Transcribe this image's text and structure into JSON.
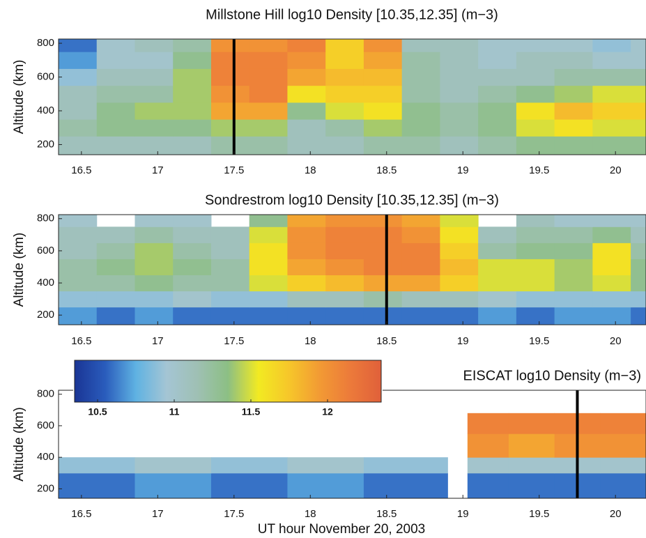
{
  "chart_data": [
    {
      "type": "heatmap",
      "title": "Millstone Hill log10 Density [10.35,12.35] (m−3)",
      "ylabel": "Altitude (km)",
      "xlim": [
        16.35,
        20.2
      ],
      "xticks": [
        16.5,
        17,
        17.5,
        18,
        18.5,
        19,
        19.5,
        20
      ],
      "ylim": [
        140,
        825
      ],
      "yticks": [
        200,
        400,
        600,
        800
      ],
      "clim": [
        10.35,
        12.35
      ],
      "colormap": [
        "#1a3595",
        "#2a5cbc",
        "#5fb2e2",
        "#a4c5d4",
        "#9fc0b4",
        "#8cbf84",
        "#f2ea22",
        "#f6c62a",
        "#f29a34",
        "#ec7a3a",
        "#e0603a"
      ],
      "marker_x": 17.5,
      "marker_color": "#000000",
      "xbins": [
        16.35,
        16.6,
        16.85,
        17.1,
        17.35,
        17.6,
        17.85,
        18.1,
        18.35,
        18.6,
        18.85,
        19.1,
        19.35,
        19.6,
        19.85,
        20.1,
        20.2
      ],
      "ybins": [
        140,
        250,
        350,
        450,
        550,
        650,
        750,
        825
      ],
      "values": [
        [
          11.1,
          11.1,
          11.1,
          11.1,
          11.2,
          11.2,
          11.1,
          11.1,
          11.2,
          11.2,
          11.1,
          11.2,
          11.3,
          11.3,
          11.3,
          11.3
        ],
        [
          11.2,
          11.3,
          11.3,
          11.3,
          11.4,
          11.4,
          11.1,
          11.2,
          11.4,
          11.3,
          11.2,
          11.3,
          11.5,
          11.6,
          11.5,
          11.5
        ],
        [
          11.1,
          11.3,
          11.4,
          11.4,
          11.9,
          11.9,
          11.3,
          11.5,
          11.6,
          11.3,
          11.2,
          11.3,
          11.6,
          11.8,
          11.7,
          11.7
        ],
        [
          11.1,
          11.2,
          11.2,
          11.4,
          12.0,
          12.1,
          11.6,
          11.7,
          11.7,
          11.2,
          11.1,
          11.2,
          11.3,
          11.4,
          11.5,
          11.5
        ],
        [
          10.9,
          11.1,
          11.1,
          11.4,
          12.1,
          12.1,
          11.9,
          11.8,
          11.8,
          11.2,
          11.1,
          11.1,
          11.1,
          11.2,
          11.2,
          11.2
        ],
        [
          10.7,
          11.0,
          11.0,
          11.3,
          12.1,
          12.1,
          12.0,
          11.7,
          11.9,
          11.2,
          11.1,
          11.0,
          11.1,
          11.1,
          11.0,
          11.0
        ],
        [
          10.6,
          11.0,
          11.1,
          11.2,
          12.0,
          12.0,
          12.1,
          11.7,
          12.0,
          11.1,
          11.1,
          11.0,
          11.0,
          11.0,
          10.9,
          11.0
        ]
      ]
    },
    {
      "type": "heatmap",
      "title": "Sondrestrom log10 Density [10.35,12.35] (m−3)",
      "ylabel": "Altitude (km)",
      "xlim": [
        16.35,
        20.2
      ],
      "xticks": [
        16.5,
        17,
        17.5,
        18,
        18.5,
        19,
        19.5,
        20
      ],
      "ylim": [
        140,
        825
      ],
      "yticks": [
        200,
        400,
        600,
        800
      ],
      "clim": [
        10.35,
        12.35
      ],
      "colormap": [
        "#1a3595",
        "#2a5cbc",
        "#5fb2e2",
        "#a4c5d4",
        "#9fc0b4",
        "#8cbf84",
        "#f2ea22",
        "#f6c62a",
        "#f29a34",
        "#ec7a3a",
        "#e0603a"
      ],
      "marker_x": 18.5,
      "marker_color": "#000000",
      "xbins": [
        16.35,
        16.6,
        16.85,
        17.1,
        17.35,
        17.6,
        17.85,
        18.1,
        18.35,
        18.6,
        18.85,
        19.1,
        19.35,
        19.6,
        19.85,
        20.1,
        20.2
      ],
      "ybins": [
        140,
        250,
        350,
        450,
        550,
        650,
        750,
        825
      ],
      "values": [
        [
          10.7,
          10.6,
          10.7,
          10.6,
          10.6,
          10.6,
          10.6,
          10.6,
          10.6,
          10.6,
          10.6,
          10.7,
          10.6,
          10.7,
          10.7,
          10.6
        ],
        [
          10.9,
          10.9,
          10.9,
          11.0,
          10.9,
          10.9,
          11.1,
          11.1,
          11.2,
          11.1,
          11.1,
          11.0,
          10.9,
          10.9,
          10.9,
          10.9
        ],
        [
          11.2,
          11.2,
          11.3,
          11.2,
          11.2,
          11.5,
          11.7,
          11.8,
          11.9,
          11.9,
          11.7,
          11.5,
          11.5,
          11.4,
          11.5,
          11.3
        ],
        [
          11.2,
          11.3,
          11.4,
          11.3,
          11.2,
          11.6,
          11.9,
          12.0,
          12.1,
          12.1,
          11.8,
          11.5,
          11.5,
          11.4,
          11.6,
          11.3
        ],
        [
          11.1,
          11.2,
          11.4,
          11.2,
          11.1,
          11.6,
          12.0,
          12.1,
          12.1,
          12.1,
          11.7,
          11.2,
          11.3,
          11.3,
          11.6,
          11.2
        ],
        [
          11.1,
          11.1,
          11.2,
          11.1,
          11.1,
          11.5,
          12.0,
          12.1,
          12.1,
          12.0,
          11.6,
          11.1,
          11.2,
          11.2,
          11.3,
          11.1
        ],
        [
          11.0,
          null,
          11.0,
          11.0,
          null,
          11.3,
          11.9,
          12.0,
          12.0,
          11.9,
          11.5,
          null,
          11.1,
          11.0,
          11.0,
          11.0
        ]
      ]
    },
    {
      "type": "heatmap",
      "title": "EISCAT log10 Density (m−3)",
      "ylabel": "Altitude (km)",
      "xlabel": "UT hour November 20, 2003",
      "xlim": [
        16.35,
        20.2
      ],
      "xticks": [
        16.5,
        17,
        17.5,
        18,
        18.5,
        19,
        19.5,
        20
      ],
      "ylim": [
        140,
        825
      ],
      "yticks": [
        200,
        400,
        600,
        800
      ],
      "clim": [
        10.35,
        12.35
      ],
      "colormap": [
        "#1a3595",
        "#2a5cbc",
        "#5fb2e2",
        "#a4c5d4",
        "#9fc0b4",
        "#8cbf84",
        "#f2ea22",
        "#f6c62a",
        "#f29a34",
        "#ec7a3a",
        "#e0603a"
      ],
      "colorbar_ticks": [
        10.5,
        11,
        11.5,
        12
      ],
      "marker_x": 19.75,
      "marker_color": "#000000",
      "xbins": [
        16.35,
        16.85,
        17.35,
        17.85,
        18.35,
        18.9,
        19.03,
        19.3,
        19.6,
        19.9,
        20.2
      ],
      "ybins": [
        140,
        300,
        400,
        550,
        680,
        825
      ],
      "values": [
        [
          10.6,
          10.7,
          10.6,
          10.7,
          10.6,
          null,
          10.6,
          10.6,
          10.6,
          10.6
        ],
        [
          10.9,
          11.0,
          10.9,
          11.0,
          10.9,
          null,
          11.0,
          11.0,
          11.0,
          11.0
        ],
        [
          null,
          null,
          null,
          null,
          null,
          null,
          12.0,
          11.9,
          12.0,
          12.0
        ],
        [
          null,
          null,
          null,
          null,
          null,
          null,
          12.1,
          12.1,
          12.1,
          12.1
        ],
        [
          null,
          null,
          null,
          null,
          null,
          null,
          null,
          null,
          null,
          null
        ]
      ]
    }
  ]
}
